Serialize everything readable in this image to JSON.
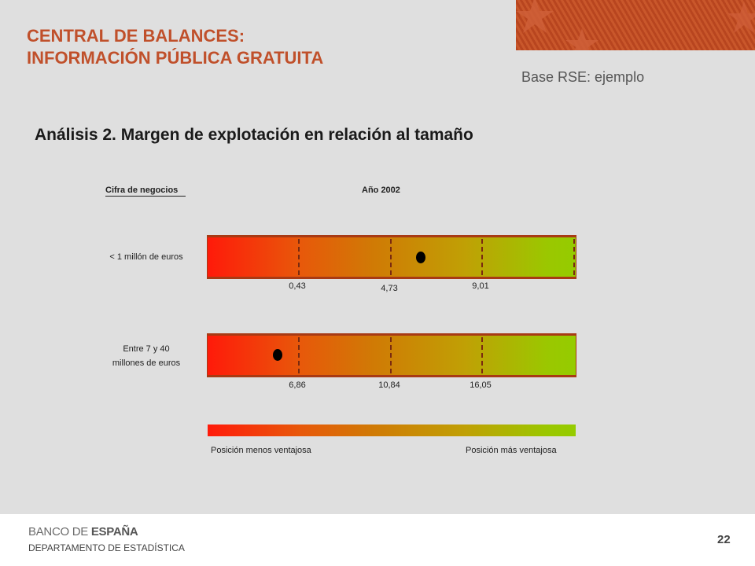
{
  "header": {
    "title_line1": "CENTRAL DE BALANCES:",
    "title_line2": "INFORMACIÓN PÚBLICA GRATUITA",
    "base_label": "Base RSE: ejemplo"
  },
  "section": {
    "title": "Análisis 2. Margen de explotación en relación al tamaño"
  },
  "table": {
    "col_size": "Cifra de negocios",
    "col_year": "Año 2002"
  },
  "chart_data": {
    "type": "bar",
    "title": "Análisis 2. Margen de explotación en relación al tamaño",
    "xlabel": "",
    "ylabel": "",
    "rows": [
      {
        "label": "< 1 millón de euros",
        "quartile_values": [
          0.43,
          4.73,
          9.01
        ],
        "quartile_labels": [
          "0,43",
          "4,73",
          "9,01"
        ],
        "marker_position_fraction": 0.58
      },
      {
        "label_line1": "Entre 7 y 40",
        "label_line2": "millones de euros",
        "quartile_values": [
          6.86,
          10.84,
          16.05
        ],
        "quartile_labels": [
          "6,86",
          "10,84",
          "16,05"
        ],
        "marker_position_fraction": 0.19
      }
    ]
  },
  "legend": {
    "left": "Posición menos ventajosa",
    "right": "Posición más ventajosa"
  },
  "footer": {
    "bank_part1": "BANCO DE ",
    "bank_part2": "ESPAÑA",
    "department": "DEPARTAMENTO DE ESTADÍSTICA",
    "page_number": "22"
  },
  "colors": {
    "title": "#c0502b",
    "bar_low": "#ff1a0a",
    "bar_high": "#95cc00",
    "bar_border": "#a83a14"
  }
}
